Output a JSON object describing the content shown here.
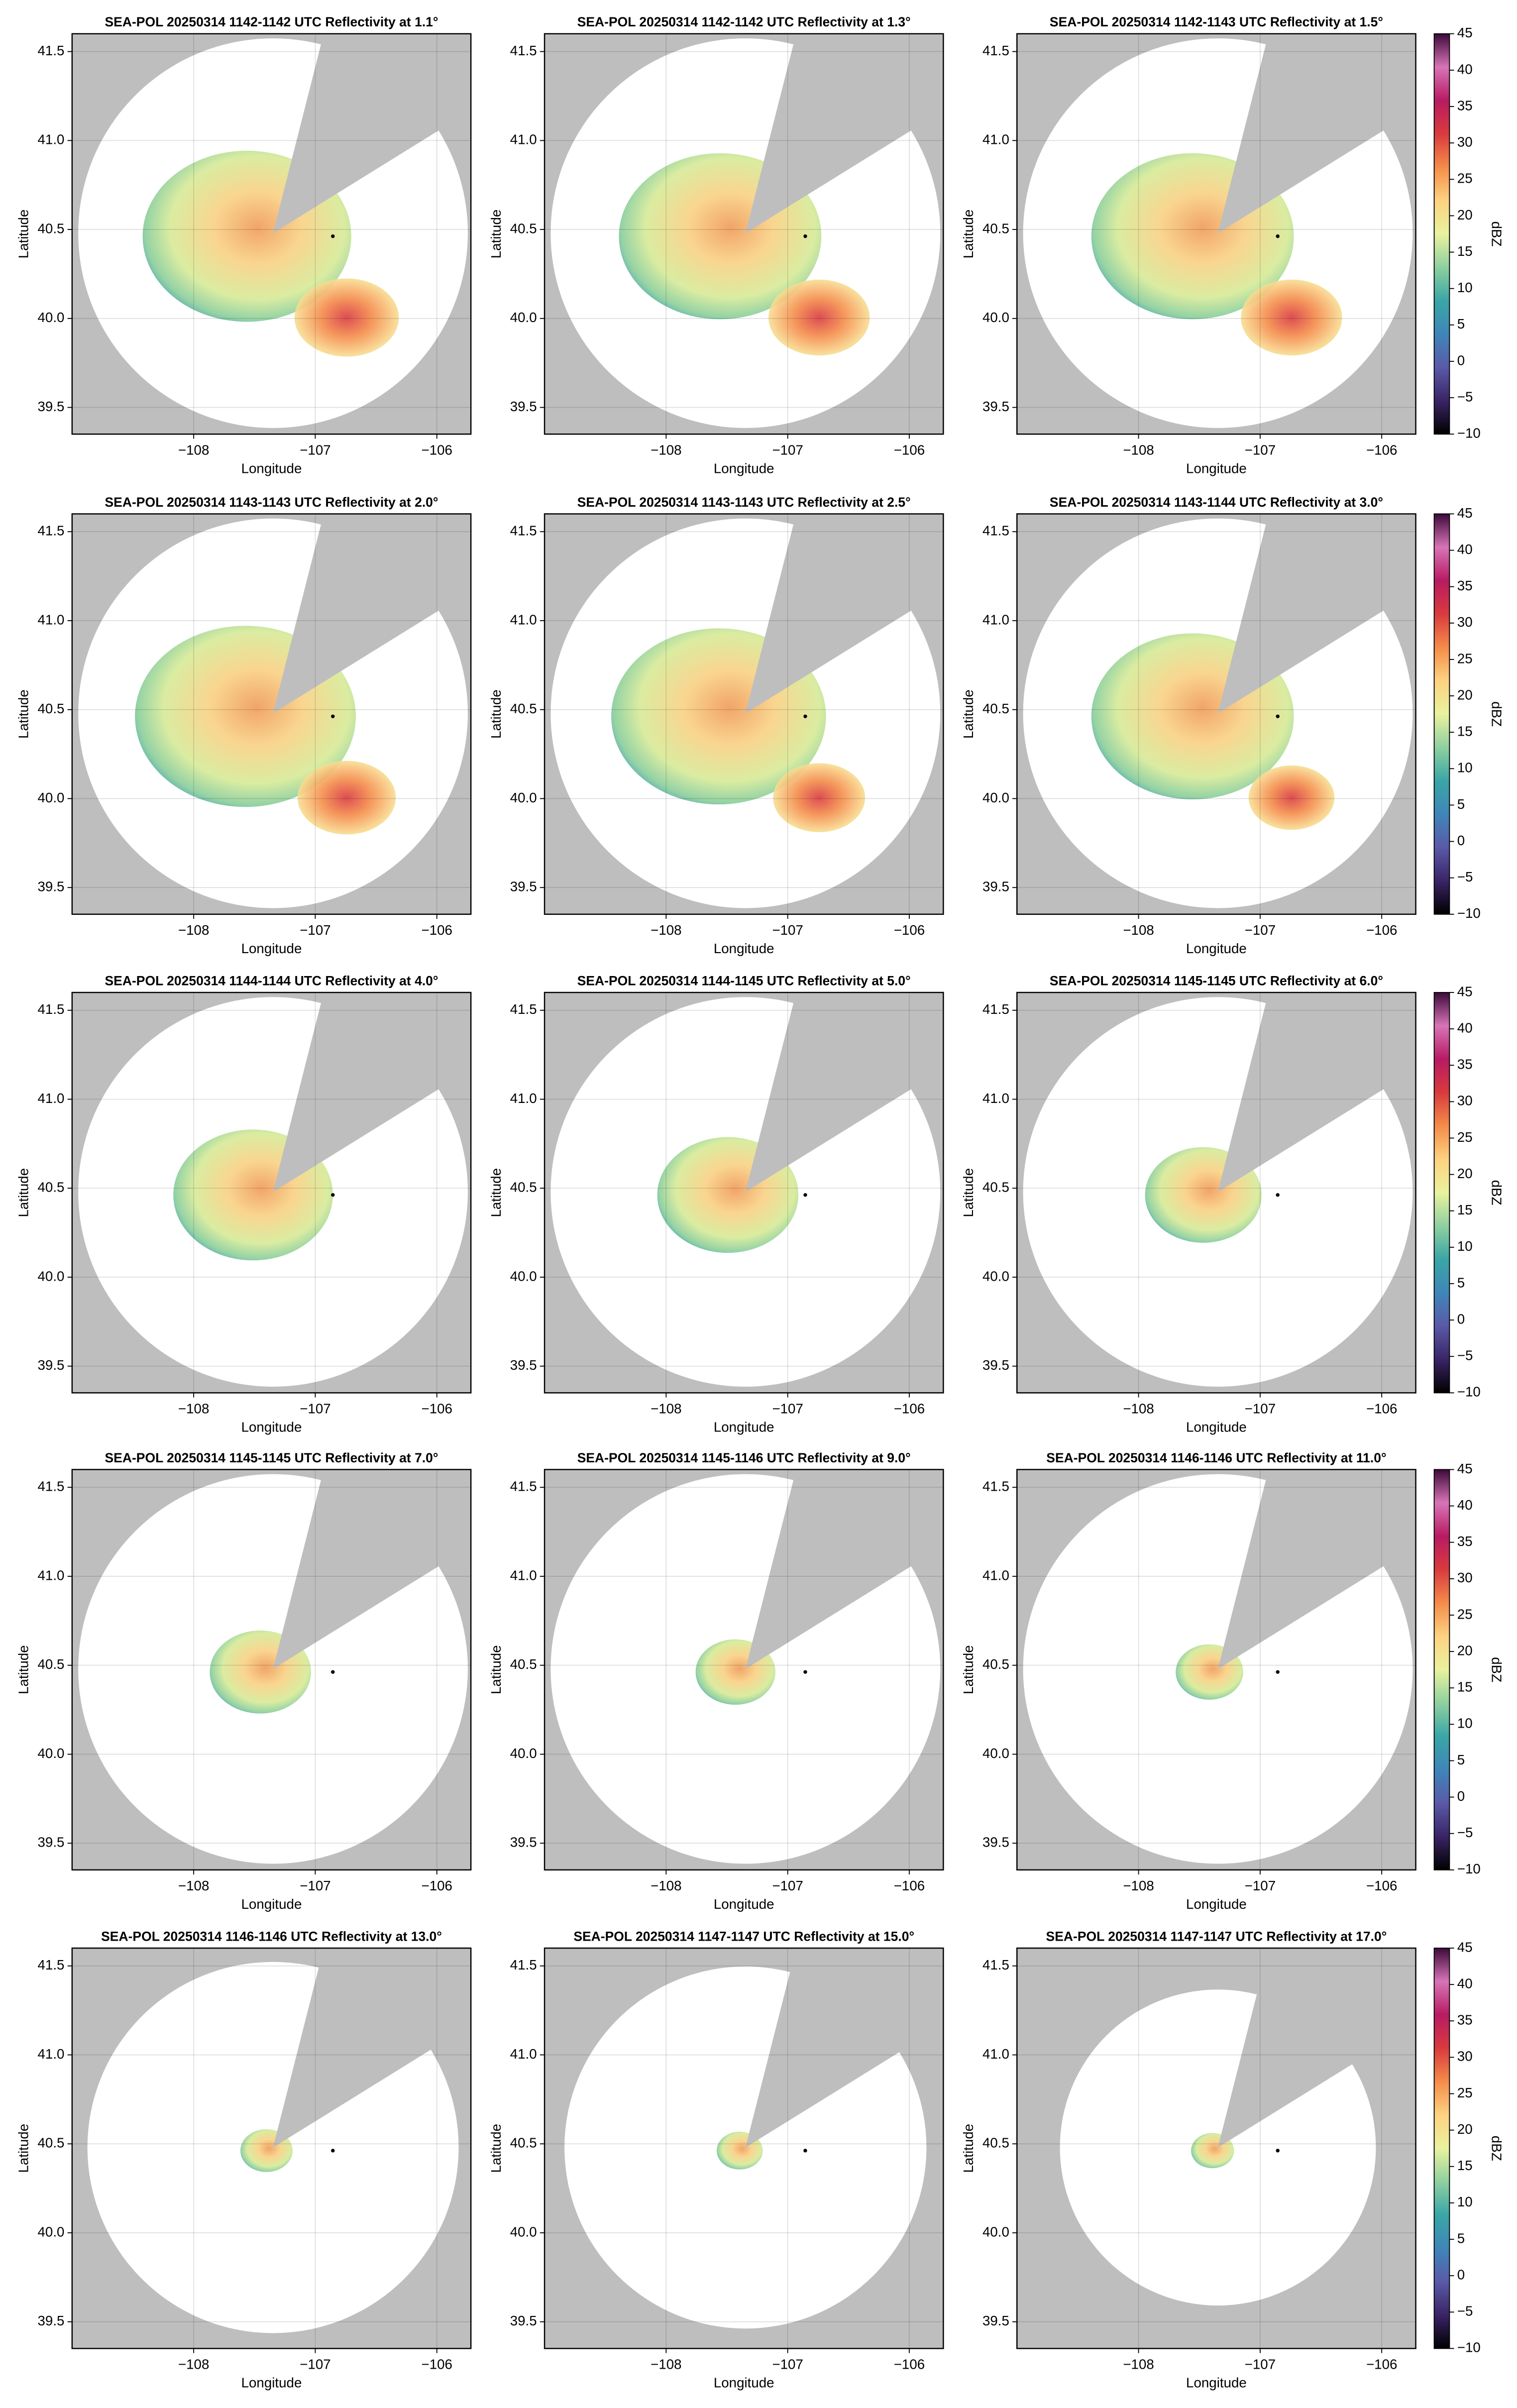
{
  "chart_data": [
    {
      "type": "radar-ppi",
      "title": "SEA-POL 20250314 1142-1142 UTC Reflectivity at 1.1°",
      "xlabel": "Longitude",
      "ylabel": "Latitude",
      "xlim": [
        -109.0,
        -105.72
      ],
      "ylim": [
        39.35,
        41.6
      ],
      "xticks": [
        {
          "value": -108,
          "label": "−108"
        },
        {
          "value": -107,
          "label": "−107"
        },
        {
          "value": -106,
          "label": "−106"
        }
      ],
      "yticks": [
        39.5,
        {
          "value": 40,
          "label": "40.0"
        },
        40.5,
        {
          "value": 41,
          "label": "41.0"
        },
        41.5
      ],
      "grid": true
    },
    {
      "type": "radar-ppi",
      "title": "SEA-POL 20250314 1142-1142 UTC Reflectivity at 1.3°",
      "xlabel": "Longitude",
      "ylabel": "Latitude",
      "xlim": [
        -109.0,
        -105.72
      ],
      "ylim": [
        39.35,
        41.6
      ],
      "xticks": [
        {
          "value": -108,
          "label": "−108"
        },
        {
          "value": -107,
          "label": "−107"
        },
        {
          "value": -106,
          "label": "−106"
        }
      ],
      "yticks": [
        39.5,
        {
          "value": 40,
          "label": "40.0"
        },
        40.5,
        {
          "value": 41,
          "label": "41.0"
        },
        41.5
      ],
      "grid": true
    },
    {
      "type": "radar-ppi",
      "title": "SEA-POL 20250314 1142-1143 UTC Reflectivity at 1.5°",
      "xlabel": "Longitude",
      "ylabel": "Latitude",
      "xlim": [
        -109.0,
        -105.72
      ],
      "ylim": [
        39.35,
        41.6
      ],
      "xticks": [
        {
          "value": -108,
          "label": "−108"
        },
        {
          "value": -107,
          "label": "−107"
        },
        {
          "value": -106,
          "label": "−106"
        }
      ],
      "yticks": [
        39.5,
        {
          "value": 40,
          "label": "40.0"
        },
        40.5,
        {
          "value": 41,
          "label": "41.0"
        },
        41.5
      ],
      "grid": true,
      "colorbar": {
        "label": "dBZ",
        "lim": [
          -10,
          45
        ],
        "ticks": [
          {
            "value": -10,
            "label": "−10"
          },
          {
            "value": -5,
            "label": "−5"
          },
          0,
          5,
          10,
          15,
          20,
          25,
          30,
          35,
          40,
          45
        ],
        "colors": [
          "#000000",
          "#3a2466",
          "#5a5aa8",
          "#3f86b8",
          "#3aa6a6",
          "#8fd0a0",
          "#e9f29e",
          "#fdd281",
          "#f48c4a",
          "#d93a3e",
          "#b81b62",
          "#d874b8",
          "#3d0a3a"
        ]
      }
    },
    {
      "type": "radar-ppi",
      "title": "SEA-POL 20250314 1143-1143 UTC Reflectivity at 2.0°",
      "xlabel": "Longitude",
      "ylabel": "Latitude",
      "xlim": [
        -109.0,
        -105.72
      ],
      "ylim": [
        39.35,
        41.6
      ],
      "xticks": [
        {
          "value": -108,
          "label": "−108"
        },
        {
          "value": -107,
          "label": "−107"
        },
        {
          "value": -106,
          "label": "−106"
        }
      ],
      "yticks": [
        39.5,
        {
          "value": 40,
          "label": "40.0"
        },
        40.5,
        {
          "value": 41,
          "label": "41.0"
        },
        41.5
      ],
      "grid": true
    },
    {
      "type": "radar-ppi",
      "title": "SEA-POL 20250314 1143-1143 UTC Reflectivity at 2.5°",
      "xlabel": "Longitude",
      "ylabel": "Latitude",
      "xlim": [
        -109.0,
        -105.72
      ],
      "ylim": [
        39.35,
        41.6
      ],
      "xticks": [
        {
          "value": -108,
          "label": "−108"
        },
        {
          "value": -107,
          "label": "−107"
        },
        {
          "value": -106,
          "label": "−106"
        }
      ],
      "yticks": [
        39.5,
        {
          "value": 40,
          "label": "40.0"
        },
        40.5,
        {
          "value": 41,
          "label": "41.0"
        },
        41.5
      ],
      "grid": true
    },
    {
      "type": "radar-ppi",
      "title": "SEA-POL 20250314 1143-1144 UTC Reflectivity at 3.0°",
      "xlabel": "Longitude",
      "ylabel": "Latitude",
      "xlim": [
        -109.0,
        -105.72
      ],
      "ylim": [
        39.35,
        41.6
      ],
      "xticks": [
        {
          "value": -108,
          "label": "−108"
        },
        {
          "value": -107,
          "label": "−107"
        },
        {
          "value": -106,
          "label": "−106"
        }
      ],
      "yticks": [
        39.5,
        {
          "value": 40,
          "label": "40.0"
        },
        40.5,
        {
          "value": 41,
          "label": "41.0"
        },
        41.5
      ],
      "grid": true,
      "colorbar": {
        "label": "dBZ",
        "lim": [
          -10,
          45
        ],
        "ticks": [
          {
            "value": -10,
            "label": "−10"
          },
          {
            "value": -5,
            "label": "−5"
          },
          0,
          5,
          10,
          15,
          20,
          25,
          30,
          35,
          40,
          45
        ],
        "colors": [
          "#000000",
          "#3a2466",
          "#5a5aa8",
          "#3f86b8",
          "#3aa6a6",
          "#8fd0a0",
          "#e9f29e",
          "#fdd281",
          "#f48c4a",
          "#d93a3e",
          "#b81b62",
          "#d874b8",
          "#3d0a3a"
        ]
      }
    },
    {
      "type": "radar-ppi",
      "title": "SEA-POL 20250314 1144-1144 UTC Reflectivity at 4.0°",
      "xlabel": "Longitude",
      "ylabel": "Latitude",
      "xlim": [
        -109.0,
        -105.72
      ],
      "ylim": [
        39.35,
        41.6
      ],
      "xticks": [
        {
          "value": -108,
          "label": "−108"
        },
        {
          "value": -107,
          "label": "−107"
        },
        {
          "value": -106,
          "label": "−106"
        }
      ],
      "yticks": [
        39.5,
        {
          "value": 40,
          "label": "40.0"
        },
        40.5,
        {
          "value": 41,
          "label": "41.0"
        },
        41.5
      ],
      "grid": true
    },
    {
      "type": "radar-ppi",
      "title": "SEA-POL 20250314 1144-1145 UTC Reflectivity at 5.0°",
      "xlabel": "Longitude",
      "ylabel": "Latitude",
      "xlim": [
        -109.0,
        -105.72
      ],
      "ylim": [
        39.35,
        41.6
      ],
      "xticks": [
        {
          "value": -108,
          "label": "−108"
        },
        {
          "value": -107,
          "label": "−107"
        },
        {
          "value": -106,
          "label": "−106"
        }
      ],
      "yticks": [
        39.5,
        {
          "value": 40,
          "label": "40.0"
        },
        40.5,
        {
          "value": 41,
          "label": "41.0"
        },
        41.5
      ],
      "grid": true
    },
    {
      "type": "radar-ppi",
      "title": "SEA-POL 20250314 1145-1145 UTC Reflectivity at 6.0°",
      "xlabel": "Longitude",
      "ylabel": "Latitude",
      "xlim": [
        -109.0,
        -105.72
      ],
      "ylim": [
        39.35,
        41.6
      ],
      "xticks": [
        {
          "value": -108,
          "label": "−108"
        },
        {
          "value": -107,
          "label": "−107"
        },
        {
          "value": -106,
          "label": "−106"
        }
      ],
      "yticks": [
        39.5,
        {
          "value": 40,
          "label": "40.0"
        },
        40.5,
        {
          "value": 41,
          "label": "41.0"
        },
        41.5
      ],
      "grid": true,
      "colorbar": {
        "label": "dBZ",
        "lim": [
          -10,
          45
        ],
        "ticks": [
          {
            "value": -10,
            "label": "−10"
          },
          {
            "value": -5,
            "label": "−5"
          },
          0,
          5,
          10,
          15,
          20,
          25,
          30,
          35,
          40,
          45
        ],
        "colors": [
          "#000000",
          "#3a2466",
          "#5a5aa8",
          "#3f86b8",
          "#3aa6a6",
          "#8fd0a0",
          "#e9f29e",
          "#fdd281",
          "#f48c4a",
          "#d93a3e",
          "#b81b62",
          "#d874b8",
          "#3d0a3a"
        ]
      }
    },
    {
      "type": "radar-ppi",
      "title": "SEA-POL 20250314 1145-1145 UTC Reflectivity at 7.0°",
      "xlabel": "Longitude",
      "ylabel": "Latitude",
      "xlim": [
        -109.0,
        -105.72
      ],
      "ylim": [
        39.35,
        41.6
      ],
      "xticks": [
        {
          "value": -108,
          "label": "−108"
        },
        {
          "value": -107,
          "label": "−107"
        },
        {
          "value": -106,
          "label": "−106"
        }
      ],
      "yticks": [
        39.5,
        {
          "value": 40,
          "label": "40.0"
        },
        40.5,
        {
          "value": 41,
          "label": "41.0"
        },
        41.5
      ],
      "grid": true
    },
    {
      "type": "radar-ppi",
      "title": "SEA-POL 20250314 1145-1146 UTC Reflectivity at 9.0°",
      "xlabel": "Longitude",
      "ylabel": "Latitude",
      "xlim": [
        -109.0,
        -105.72
      ],
      "ylim": [
        39.35,
        41.6
      ],
      "xticks": [
        {
          "value": -108,
          "label": "−108"
        },
        {
          "value": -107,
          "label": "−107"
        },
        {
          "value": -106,
          "label": "−106"
        }
      ],
      "yticks": [
        39.5,
        {
          "value": 40,
          "label": "40.0"
        },
        40.5,
        {
          "value": 41,
          "label": "41.0"
        },
        41.5
      ],
      "grid": true
    },
    {
      "type": "radar-ppi",
      "title": "SEA-POL 20250314 1146-1146 UTC Reflectivity at 11.0°",
      "xlabel": "Longitude",
      "ylabel": "Latitude",
      "xlim": [
        -109.0,
        -105.72
      ],
      "ylim": [
        39.35,
        41.6
      ],
      "xticks": [
        {
          "value": -108,
          "label": "−108"
        },
        {
          "value": -107,
          "label": "−107"
        },
        {
          "value": -106,
          "label": "−106"
        }
      ],
      "yticks": [
        39.5,
        {
          "value": 40,
          "label": "40.0"
        },
        40.5,
        {
          "value": 41,
          "label": "41.0"
        },
        41.5
      ],
      "grid": true,
      "colorbar": {
        "label": "dBZ",
        "lim": [
          -10,
          45
        ],
        "ticks": [
          {
            "value": -10,
            "label": "−10"
          },
          {
            "value": -5,
            "label": "−5"
          },
          0,
          5,
          10,
          15,
          20,
          25,
          30,
          35,
          40,
          45
        ],
        "colors": [
          "#000000",
          "#3a2466",
          "#5a5aa8",
          "#3f86b8",
          "#3aa6a6",
          "#8fd0a0",
          "#e9f29e",
          "#fdd281",
          "#f48c4a",
          "#d93a3e",
          "#b81b62",
          "#d874b8",
          "#3d0a3a"
        ]
      }
    },
    {
      "type": "radar-ppi",
      "title": "SEA-POL 20250314 1146-1146 UTC Reflectivity at 13.0°",
      "xlabel": "Longitude",
      "ylabel": "Latitude",
      "xlim": [
        -109.0,
        -105.72
      ],
      "ylim": [
        39.35,
        41.6
      ],
      "xticks": [
        {
          "value": -108,
          "label": "−108"
        },
        {
          "value": -107,
          "label": "−107"
        },
        {
          "value": -106,
          "label": "−106"
        }
      ],
      "yticks": [
        39.5,
        {
          "value": 40,
          "label": "40.0"
        },
        40.5,
        {
          "value": 41,
          "label": "41.0"
        },
        41.5
      ],
      "grid": true
    },
    {
      "type": "radar-ppi",
      "title": "SEA-POL 20250314 1147-1147 UTC Reflectivity at 15.0°",
      "xlabel": "Longitude",
      "ylabel": "Latitude",
      "xlim": [
        -109.0,
        -105.72
      ],
      "ylim": [
        39.35,
        41.6
      ],
      "xticks": [
        {
          "value": -108,
          "label": "−108"
        },
        {
          "value": -107,
          "label": "−107"
        },
        {
          "value": -106,
          "label": "−106"
        }
      ],
      "yticks": [
        39.5,
        {
          "value": 40,
          "label": "40.0"
        },
        40.5,
        {
          "value": 41,
          "label": "41.0"
        },
        41.5
      ],
      "grid": true
    },
    {
      "type": "radar-ppi",
      "title": "SEA-POL 20250314 1147-1147 UTC Reflectivity at 17.0°",
      "xlabel": "Longitude",
      "ylabel": "Latitude",
      "xlim": [
        -109.0,
        -105.72
      ],
      "ylim": [
        39.35,
        41.6
      ],
      "xticks": [
        {
          "value": -108,
          "label": "−108"
        },
        {
          "value": -107,
          "label": "−107"
        },
        {
          "value": -106,
          "label": "−106"
        }
      ],
      "yticks": [
        39.5,
        {
          "value": 40,
          "label": "40.0"
        },
        40.5,
        {
          "value": 41,
          "label": "41.0"
        },
        41.5
      ],
      "grid": true,
      "colorbar": {
        "label": "dBZ",
        "lim": [
          -10,
          45
        ],
        "ticks": [
          {
            "value": -10,
            "label": "−10"
          },
          {
            "value": -5,
            "label": "−5"
          },
          0,
          5,
          10,
          15,
          20,
          25,
          30,
          35,
          40,
          45
        ],
        "colors": [
          "#000000",
          "#3a2466",
          "#5a5aa8",
          "#3f86b8",
          "#3aa6a6",
          "#8fd0a0",
          "#e9f29e",
          "#fdd281",
          "#f48c4a",
          "#d93a3e",
          "#b81b62",
          "#d874b8",
          "#3d0a3a"
        ]
      }
    }
  ]
}
